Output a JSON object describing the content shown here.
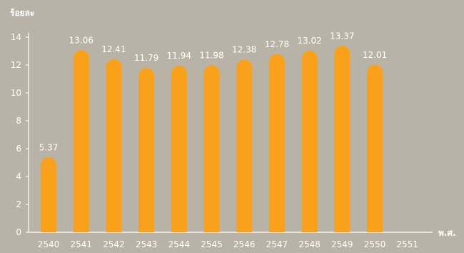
{
  "chart_data": {
    "type": "bar",
    "ylabel": "ร้อยละ",
    "xlabel": "พ.ศ.",
    "categories": [
      "2540",
      "2541",
      "2542",
      "2543",
      "2544",
      "2545",
      "2546",
      "2547",
      "2548",
      "2549",
      "2550",
      "2551"
    ],
    "values": [
      5.37,
      13.06,
      12.41,
      11.79,
      11.94,
      11.98,
      12.38,
      12.78,
      13.02,
      13.37,
      12.01,
      null
    ],
    "value_labels": [
      "5.37",
      "13.06",
      "12.41",
      "11.79",
      "11.94",
      "11.98",
      "12.38",
      "12.78",
      "13.02",
      "13.37",
      "12.01",
      ""
    ],
    "yticks": [
      "0",
      "2",
      "4",
      "6",
      "8",
      "10",
      "12",
      "14"
    ],
    "ylim": [
      0,
      14
    ],
    "grid": false,
    "colors": {
      "bar": "#f9a11b",
      "axis": "#ffffff",
      "text": "#ffffff",
      "background": "#b8b3a6"
    }
  }
}
